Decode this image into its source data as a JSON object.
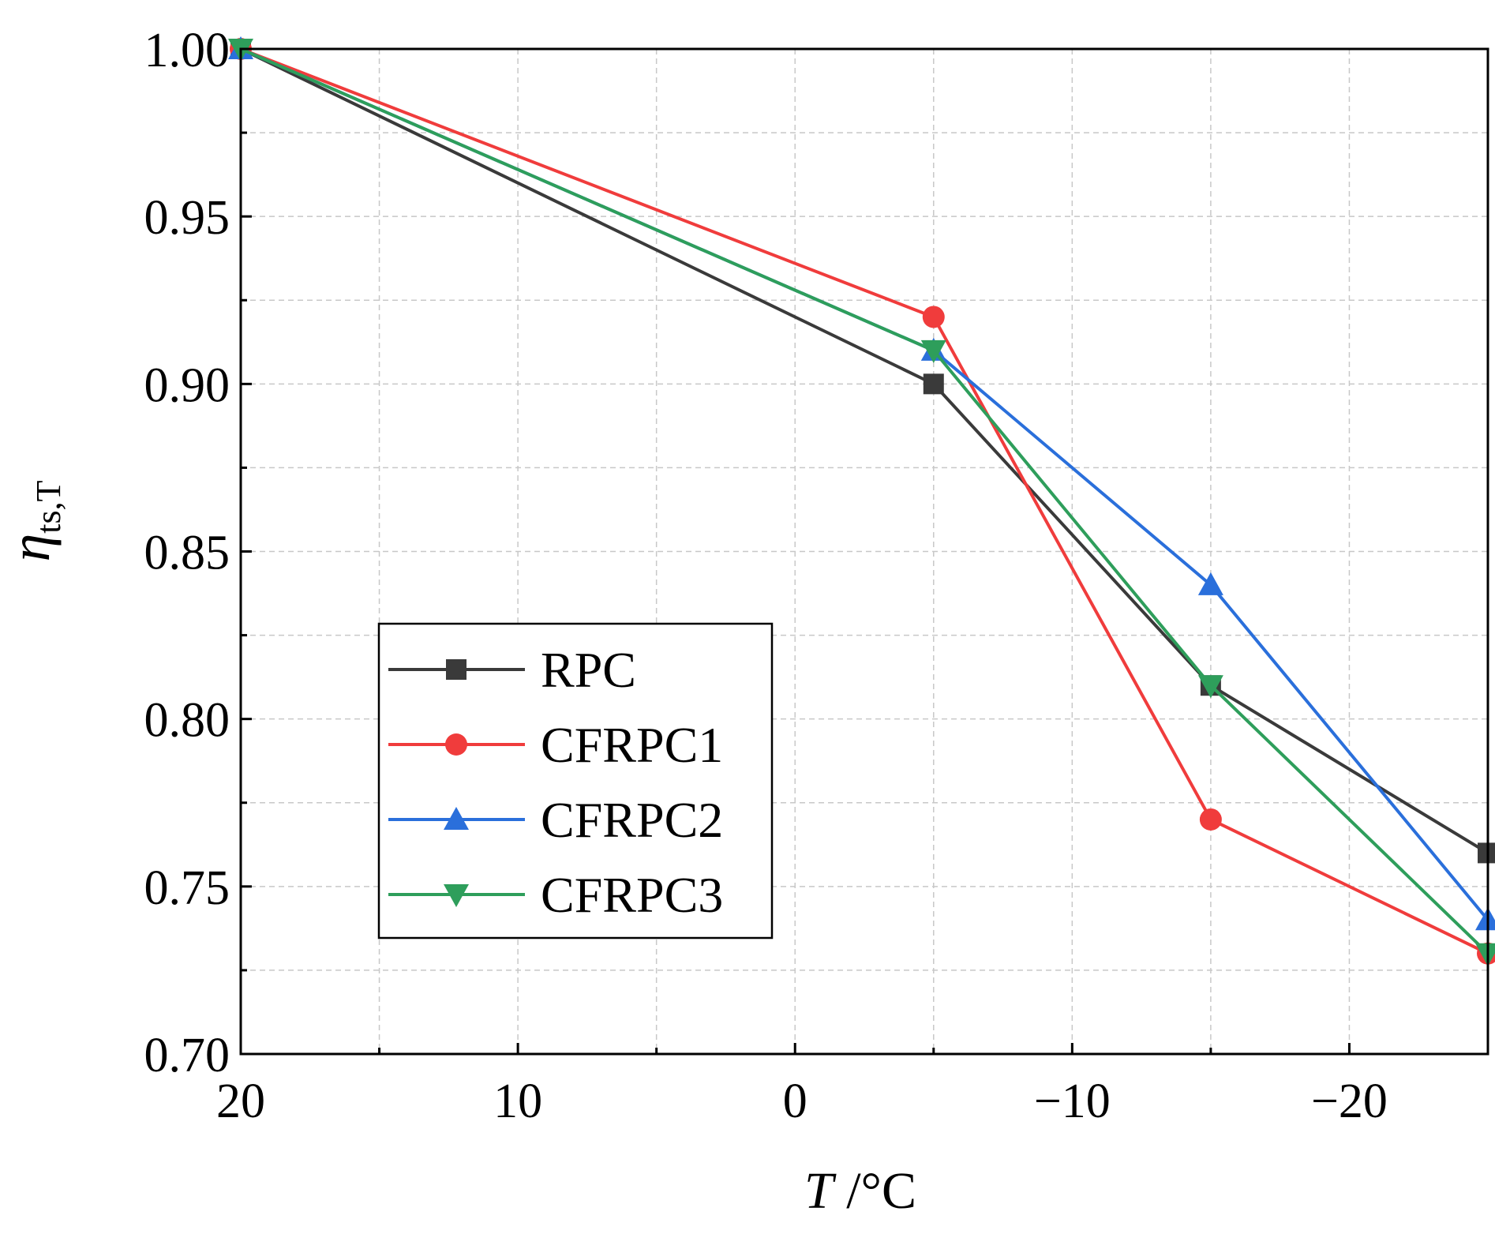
{
  "chart_data": {
    "type": "line",
    "title": "",
    "xlabel_var": "T",
    "xlabel_unit": " /°C",
    "ylabel_main": "η",
    "ylabel_sub": "ts,T",
    "x": [
      20,
      -5,
      -15,
      -25
    ],
    "xlim": [
      20,
      -25
    ],
    "ylim": [
      0.7,
      1.0
    ],
    "x_ticks": [
      20,
      10,
      0,
      -10,
      -20
    ],
    "x_tick_labels": [
      "20",
      "10",
      "0",
      "−10",
      "−20"
    ],
    "y_ticks": [
      0.7,
      0.75,
      0.8,
      0.85,
      0.9,
      0.95,
      1.0
    ],
    "y_tick_labels": [
      "0.70",
      "0.75",
      "0.80",
      "0.85",
      "0.90",
      "0.95",
      "1.00"
    ],
    "grid": true,
    "legend_position": "bottom-left",
    "series": [
      {
        "name": "RPC",
        "values": [
          1.0,
          0.9,
          0.81,
          0.76
        ],
        "color": "#3a3a3a",
        "marker": "square"
      },
      {
        "name": "CFRPC1",
        "values": [
          1.0,
          0.92,
          0.77,
          0.73
        ],
        "color": "#f03c3c",
        "marker": "circle"
      },
      {
        "name": "CFRPC2",
        "values": [
          1.0,
          0.91,
          0.84,
          0.74
        ],
        "color": "#2a6fdb",
        "marker": "triangle-up"
      },
      {
        "name": "CFRPC3",
        "values": [
          1.0,
          0.91,
          0.81,
          0.73
        ],
        "color": "#2e9e5b",
        "marker": "triangle-down"
      }
    ]
  }
}
